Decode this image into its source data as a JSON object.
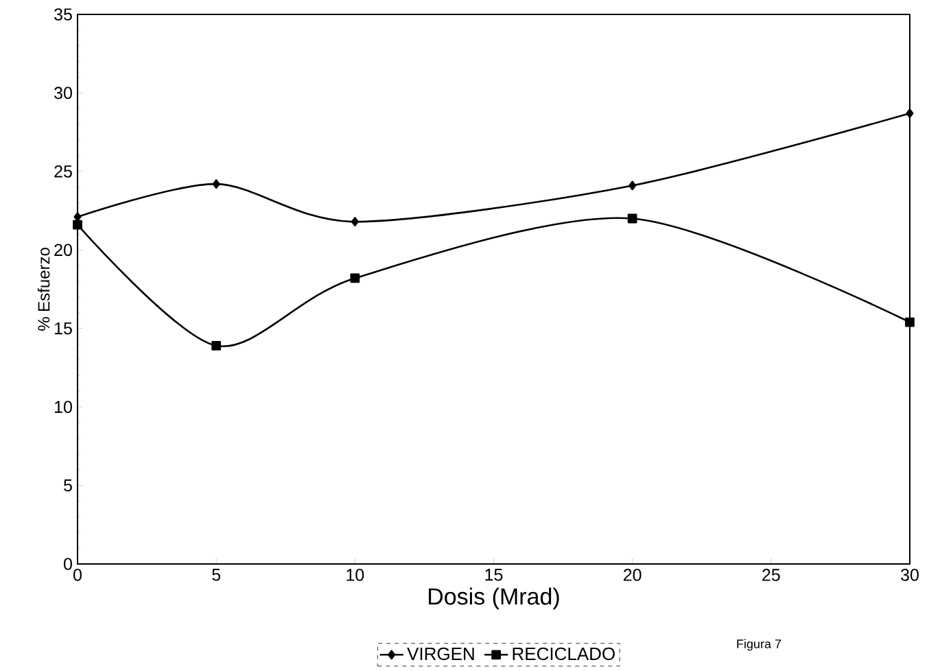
{
  "chart_data": {
    "type": "line",
    "xlabel": "Dosis (Mrad)",
    "ylabel": "% Esfuerzo",
    "x": [
      0,
      5,
      10,
      20,
      30
    ],
    "series": [
      {
        "name": "VIRGEN",
        "color": "#000000",
        "marker": "diamond",
        "values": [
          22.1,
          24.2,
          21.8,
          24.1,
          28.7
        ]
      },
      {
        "name": "RECICLADO",
        "color": "#000000",
        "marker": "square",
        "values": [
          21.6,
          13.9,
          18.2,
          22.0,
          15.4
        ]
      }
    ],
    "xlim": [
      0,
      30
    ],
    "ylim": [
      0,
      35
    ],
    "xticks": [
      0,
      5,
      10,
      15,
      20,
      25,
      30
    ],
    "yticks": [
      0,
      5,
      10,
      15,
      20,
      25,
      30,
      35
    ],
    "grid": false,
    "legend": "bottom",
    "line_style": "solid",
    "annotations": [
      "Figura 7"
    ]
  }
}
